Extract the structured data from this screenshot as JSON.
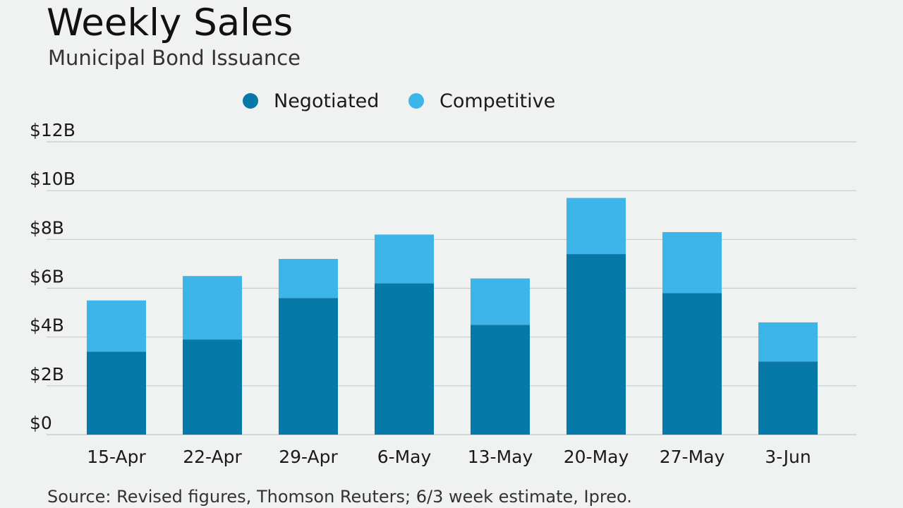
{
  "header": {
    "title": "Weekly Sales",
    "subtitle": "Municipal Bond Issuance"
  },
  "footer": {
    "source": "Source: Revised figures, Thomson Reuters; 6/3 week estimate, Ipreo."
  },
  "colors": {
    "negotiated": "#0779a8",
    "competitive": "#3db5e8",
    "grid": "#c7cbcc",
    "background": "#f0f2f2"
  },
  "chart_data": {
    "type": "bar",
    "stacked": true,
    "title": "Weekly Sales",
    "subtitle": "Municipal Bond Issuance",
    "xlabel": "",
    "ylabel": "",
    "categories": [
      "15-Apr",
      "22-Apr",
      "29-Apr",
      "6-May",
      "13-May",
      "20-May",
      "27-May",
      "3-Jun"
    ],
    "series": [
      {
        "name": "Negotiated",
        "values": [
          3.4,
          3.9,
          5.6,
          6.2,
          4.5,
          7.4,
          5.8,
          3.0
        ]
      },
      {
        "name": "Competitive",
        "values": [
          2.1,
          2.6,
          1.6,
          2.0,
          1.9,
          2.3,
          2.5,
          1.6
        ]
      }
    ],
    "ylim": [
      0,
      12
    ],
    "yticks": [
      0,
      2,
      4,
      6,
      8,
      10,
      12
    ],
    "ytick_labels": [
      "$0",
      "$2B",
      "$4B",
      "$6B",
      "$8B",
      "$10B",
      "$12B"
    ],
    "grid": true,
    "legend": "top-center"
  }
}
